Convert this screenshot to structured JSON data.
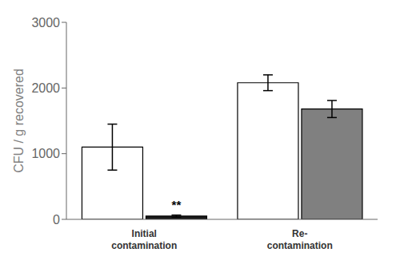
{
  "chart_data": {
    "type": "bar",
    "categories": [
      "Initial\ncontamination",
      "Re-\ncontamination"
    ],
    "series": [
      {
        "colors": [
          "#ffffff",
          "#ffffff"
        ],
        "values": [
          1100,
          2080
        ],
        "errors": [
          350,
          120
        ]
      },
      {
        "colors": [
          "#1a1a1a",
          "#808080"
        ],
        "values": [
          50,
          1680
        ],
        "errors": [
          15,
          130
        ]
      }
    ],
    "ylabel": "CFU / g recovered",
    "ylim": [
      0,
      3000
    ],
    "yticks": [
      0,
      1000,
      2000,
      3000
    ],
    "grid": false,
    "annotations": [
      {
        "text": "**",
        "category_index": 0,
        "series_index": 1
      }
    ]
  }
}
